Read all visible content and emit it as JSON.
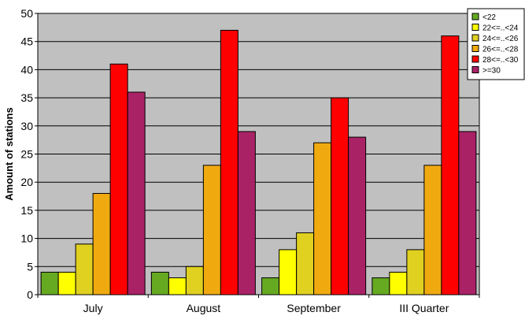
{
  "chart_data": {
    "type": "bar",
    "title": "",
    "xlabel": "",
    "ylabel": "Amount of stations",
    "ylim": [
      0,
      50
    ],
    "yticks": [
      0,
      5,
      10,
      15,
      20,
      25,
      30,
      35,
      40,
      45,
      50
    ],
    "grid": "horizontal",
    "legend_position": "top-right",
    "categories": [
      "July",
      "August",
      "September",
      "III Quarter"
    ],
    "series": [
      {
        "name": "<22",
        "color": "#66aa22",
        "values": [
          4,
          4,
          3,
          3
        ]
      },
      {
        "name": "22<=..<24",
        "color": "#ffff00",
        "values": [
          4,
          3,
          8,
          4
        ]
      },
      {
        "name": "24<=..<26",
        "color": "#e0d020",
        "values": [
          9,
          5,
          11,
          8
        ]
      },
      {
        "name": "26<=..<28",
        "color": "#f0aa10",
        "values": [
          18,
          23,
          27,
          23
        ]
      },
      {
        "name": "28<=..<30",
        "color": "#ff0000",
        "values": [
          41,
          47,
          35,
          46
        ]
      },
      {
        "name": ">=30",
        "color": "#aa2266",
        "values": [
          36,
          29,
          28,
          29
        ]
      }
    ],
    "plot_background": "#c0c0c0"
  }
}
